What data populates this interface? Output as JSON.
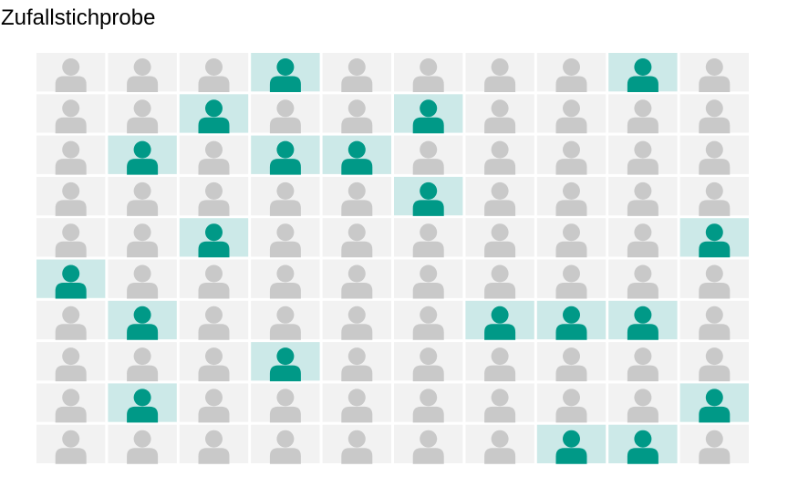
{
  "title": "Zufallstichprobe",
  "colors": {
    "background": "#ffffff",
    "cell_default": "#f2f2f2",
    "cell_selected": "#cce9e8",
    "person_default": "#c9c9c9",
    "person_selected": "#009987"
  },
  "chart_data": {
    "type": "heatmap",
    "title": "Zufallstichprobe",
    "rows": 10,
    "columns": 10,
    "icon": "person-icon",
    "legend": "none",
    "grid": false,
    "selected": [
      [
        0,
        0,
        0,
        1,
        0,
        0,
        0,
        0,
        1,
        0
      ],
      [
        0,
        0,
        1,
        0,
        0,
        1,
        0,
        0,
        0,
        0
      ],
      [
        0,
        1,
        0,
        1,
        1,
        0,
        0,
        0,
        0,
        0
      ],
      [
        0,
        0,
        0,
        0,
        0,
        1,
        0,
        0,
        0,
        0
      ],
      [
        0,
        0,
        1,
        0,
        0,
        0,
        0,
        0,
        0,
        1
      ],
      [
        1,
        0,
        0,
        0,
        0,
        0,
        0,
        0,
        0,
        0
      ],
      [
        0,
        1,
        0,
        0,
        0,
        0,
        1,
        1,
        1,
        0
      ],
      [
        0,
        0,
        0,
        1,
        0,
        0,
        0,
        0,
        0,
        0
      ],
      [
        0,
        1,
        0,
        0,
        0,
        0,
        0,
        0,
        0,
        1
      ],
      [
        0,
        0,
        0,
        0,
        0,
        0,
        0,
        1,
        1,
        0
      ]
    ]
  }
}
